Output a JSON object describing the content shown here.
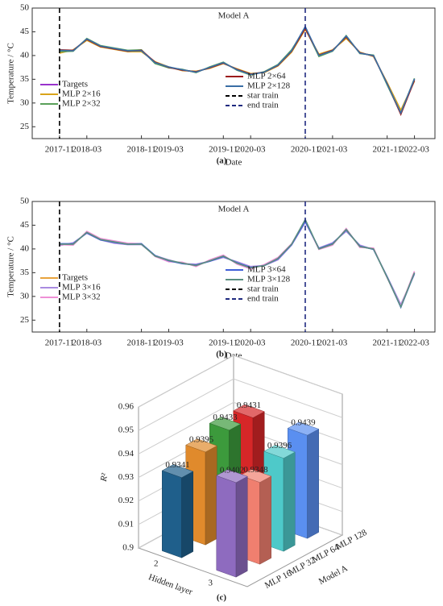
{
  "chart_data": [
    {
      "type": "line",
      "title": "Model A",
      "caption": "(a)",
      "x_label": "Date",
      "y_label": "Temperature / °C",
      "x": [
        "2017-11",
        "2018-01",
        "2018-03",
        "2018-05",
        "2018-07",
        "2018-09",
        "2018-11",
        "2019-01",
        "2019-03",
        "2019-05",
        "2019-07",
        "2019-09",
        "2019-11",
        "2020-01",
        "2020-03",
        "2020-05",
        "2020-07",
        "2020-09",
        "2020-11",
        "2021-01",
        "2021-03",
        "2021-05",
        "2021-07",
        "2021-09",
        "2021-11",
        "2022-01",
        "2022-03"
      ],
      "xlim": [
        "2017-07",
        "2022-06"
      ],
      "xticks": [
        "2017-11",
        "2018-03",
        "2018-11",
        "2019-03",
        "2019-11",
        "2020-03",
        "2020-11",
        "2021-03",
        "2021-11",
        "2022-03"
      ],
      "ylim": [
        22.5,
        50
      ],
      "yticks": [
        25,
        30,
        35,
        40,
        45,
        50
      ],
      "series": [
        {
          "name": "Targets",
          "color": "#9932cc",
          "values": [
            41,
            41,
            43.5,
            42,
            41.5,
            41,
            41,
            38.5,
            37.5,
            37,
            36.5,
            37.5,
            38.5,
            37,
            36,
            36.5,
            38,
            41,
            46,
            40,
            41,
            44,
            40.5,
            40,
            34,
            28,
            35
          ]
        },
        {
          "name": "MLP 2×16",
          "color": "#d9a31a",
          "values": [
            40.5,
            41.2,
            43.2,
            41.8,
            41.3,
            40.8,
            40.8,
            38.7,
            37.6,
            36.8,
            36.7,
            37.3,
            38.3,
            37.2,
            36.2,
            36.4,
            37.8,
            40.7,
            45.5,
            40.3,
            41.2,
            43.6,
            40.7,
            39.8,
            34.3,
            28.5,
            34.6
          ]
        },
        {
          "name": "MLP 2×32",
          "color": "#5aa05a",
          "values": [
            40.8,
            40.9,
            43.6,
            42.1,
            41.6,
            41.1,
            41.2,
            38.3,
            37.4,
            37.1,
            36.4,
            37.6,
            38.6,
            36.9,
            35.9,
            36.6,
            38.1,
            41.2,
            45.8,
            39.8,
            40.9,
            44.2,
            40.4,
            40.1,
            33.8,
            27.8,
            35.2
          ]
        },
        {
          "name": "MLP 2×64",
          "color": "#9b1b1b",
          "values": [
            41.2,
            41.1,
            43.4,
            41.9,
            41.4,
            40.9,
            41.1,
            38.6,
            37.5,
            36.9,
            36.6,
            37.4,
            38.4,
            37.1,
            36.1,
            36.5,
            37.9,
            40.9,
            45.7,
            40.1,
            41.1,
            43.9,
            40.6,
            39.9,
            34.1,
            27.6,
            34.8
          ]
        },
        {
          "name": "MLP 2×128",
          "color": "#3a6ea5",
          "values": [
            41.1,
            41,
            43.5,
            42,
            41.5,
            41,
            41,
            38.5,
            37.6,
            37,
            36.5,
            37.5,
            38.5,
            37,
            36,
            36.5,
            38,
            41,
            46.1,
            40,
            41,
            44.1,
            40.5,
            40,
            34,
            27.9,
            35.1
          ]
        }
      ],
      "vlines": [
        {
          "name": "star train",
          "x": "2017-11",
          "color": "#000000"
        },
        {
          "name": "end train",
          "x": "2020-11",
          "color": "#1f2a80"
        }
      ]
    },
    {
      "type": "line",
      "title": "Model A",
      "caption": "(b)",
      "x_label": "Date",
      "y_label": "Temperature / °C",
      "x": [
        "2017-11",
        "2018-01",
        "2018-03",
        "2018-05",
        "2018-07",
        "2018-09",
        "2018-11",
        "2019-01",
        "2019-03",
        "2019-05",
        "2019-07",
        "2019-09",
        "2019-11",
        "2020-01",
        "2020-03",
        "2020-05",
        "2020-07",
        "2020-09",
        "2020-11",
        "2021-01",
        "2021-03",
        "2021-05",
        "2021-07",
        "2021-09",
        "2021-11",
        "2022-01",
        "2022-03"
      ],
      "xlim": [
        "2017-07",
        "2022-06"
      ],
      "xticks": [
        "2017-11",
        "2018-03",
        "2018-11",
        "2019-03",
        "2019-11",
        "2020-03",
        "2020-11",
        "2021-03",
        "2021-11",
        "2022-03"
      ],
      "ylim": [
        22.5,
        50
      ],
      "yticks": [
        25,
        30,
        35,
        40,
        45,
        50
      ],
      "series": [
        {
          "name": "Targets",
          "color": "#e8a33d",
          "values": [
            41,
            41,
            43.5,
            42,
            41.5,
            41,
            41,
            38.5,
            37.5,
            37,
            36.5,
            37.5,
            38.5,
            37,
            36,
            36.5,
            38,
            41,
            46,
            40,
            41,
            44,
            40.5,
            40,
            34,
            28,
            35
          ]
        },
        {
          "name": "MLP 3×16",
          "color": "#a98be0",
          "values": [
            40.7,
            41.3,
            43.3,
            41.9,
            41.2,
            40.9,
            40.9,
            38.6,
            37.7,
            36.9,
            36.8,
            37.4,
            38.2,
            37.3,
            36.3,
            36.5,
            37.7,
            40.8,
            45.6,
            40.2,
            41.3,
            43.7,
            40.8,
            39.9,
            34.2,
            28.3,
            34.7
          ]
        },
        {
          "name": "MLP 3×32",
          "color": "#ee90d6",
          "values": [
            40.9,
            40.8,
            43.7,
            42.2,
            41.7,
            41.2,
            41.1,
            38.4,
            37.3,
            37.2,
            36.3,
            37.7,
            38.7,
            36.8,
            35.8,
            36.7,
            38.2,
            41.1,
            45.9,
            39.9,
            40.8,
            44.3,
            40.3,
            40.2,
            33.9,
            27.9,
            35.3
          ]
        },
        {
          "name": "MLP 3×64",
          "color": "#3f5fd8",
          "values": [
            41.1,
            41.1,
            43.4,
            41.9,
            41.4,
            41,
            41.1,
            38.6,
            37.5,
            36.9,
            36.6,
            37.4,
            38.4,
            37.1,
            36.1,
            36.5,
            37.9,
            40.9,
            45.8,
            40.1,
            41.1,
            44,
            40.6,
            39.9,
            34.1,
            27.7,
            34.9
          ]
        },
        {
          "name": "MLP 3×128",
          "color": "#5a8f80",
          "values": [
            41,
            41,
            43.5,
            42,
            41.5,
            41,
            41,
            38.5,
            37.6,
            37,
            36.5,
            37.5,
            38.5,
            37,
            36,
            36.5,
            38,
            41,
            46.2,
            40,
            41,
            44.1,
            40.5,
            40,
            34,
            27.8,
            35
          ]
        }
      ],
      "vlines": [
        {
          "name": "star train",
          "x": "2017-11",
          "color": "#000000"
        },
        {
          "name": "end train",
          "x": "2020-11",
          "color": "#1f2a80"
        }
      ]
    },
    {
      "type": "bar3d",
      "caption": "(c)",
      "x_label": "Hidden layer",
      "y_label": "Model A",
      "z_label": "R²",
      "categories": [
        "2",
        "3"
      ],
      "zlim": [
        0.9,
        0.96
      ],
      "zticks": [
        0.9,
        0.91,
        0.92,
        0.93,
        0.94,
        0.95,
        0.96
      ],
      "series": [
        {
          "name": "MLP 16",
          "values": [
            0.9341,
            0.9402
          ],
          "colors": [
            "#1f5f8b",
            "#8e6bbf"
          ]
        },
        {
          "name": "MLP 32",
          "values": [
            0.9395,
            0.9348
          ],
          "colors": [
            "#e08a2c",
            "#f07f6f"
          ]
        },
        {
          "name": "MLP 64",
          "values": [
            0.9433,
            0.9396
          ],
          "colors": [
            "#3c9a3c",
            "#4ec9c9"
          ]
        },
        {
          "name": "MLP 128",
          "values": [
            0.9431,
            0.9439
          ],
          "colors": [
            "#d62728",
            "#5a8ff0"
          ]
        }
      ]
    }
  ]
}
